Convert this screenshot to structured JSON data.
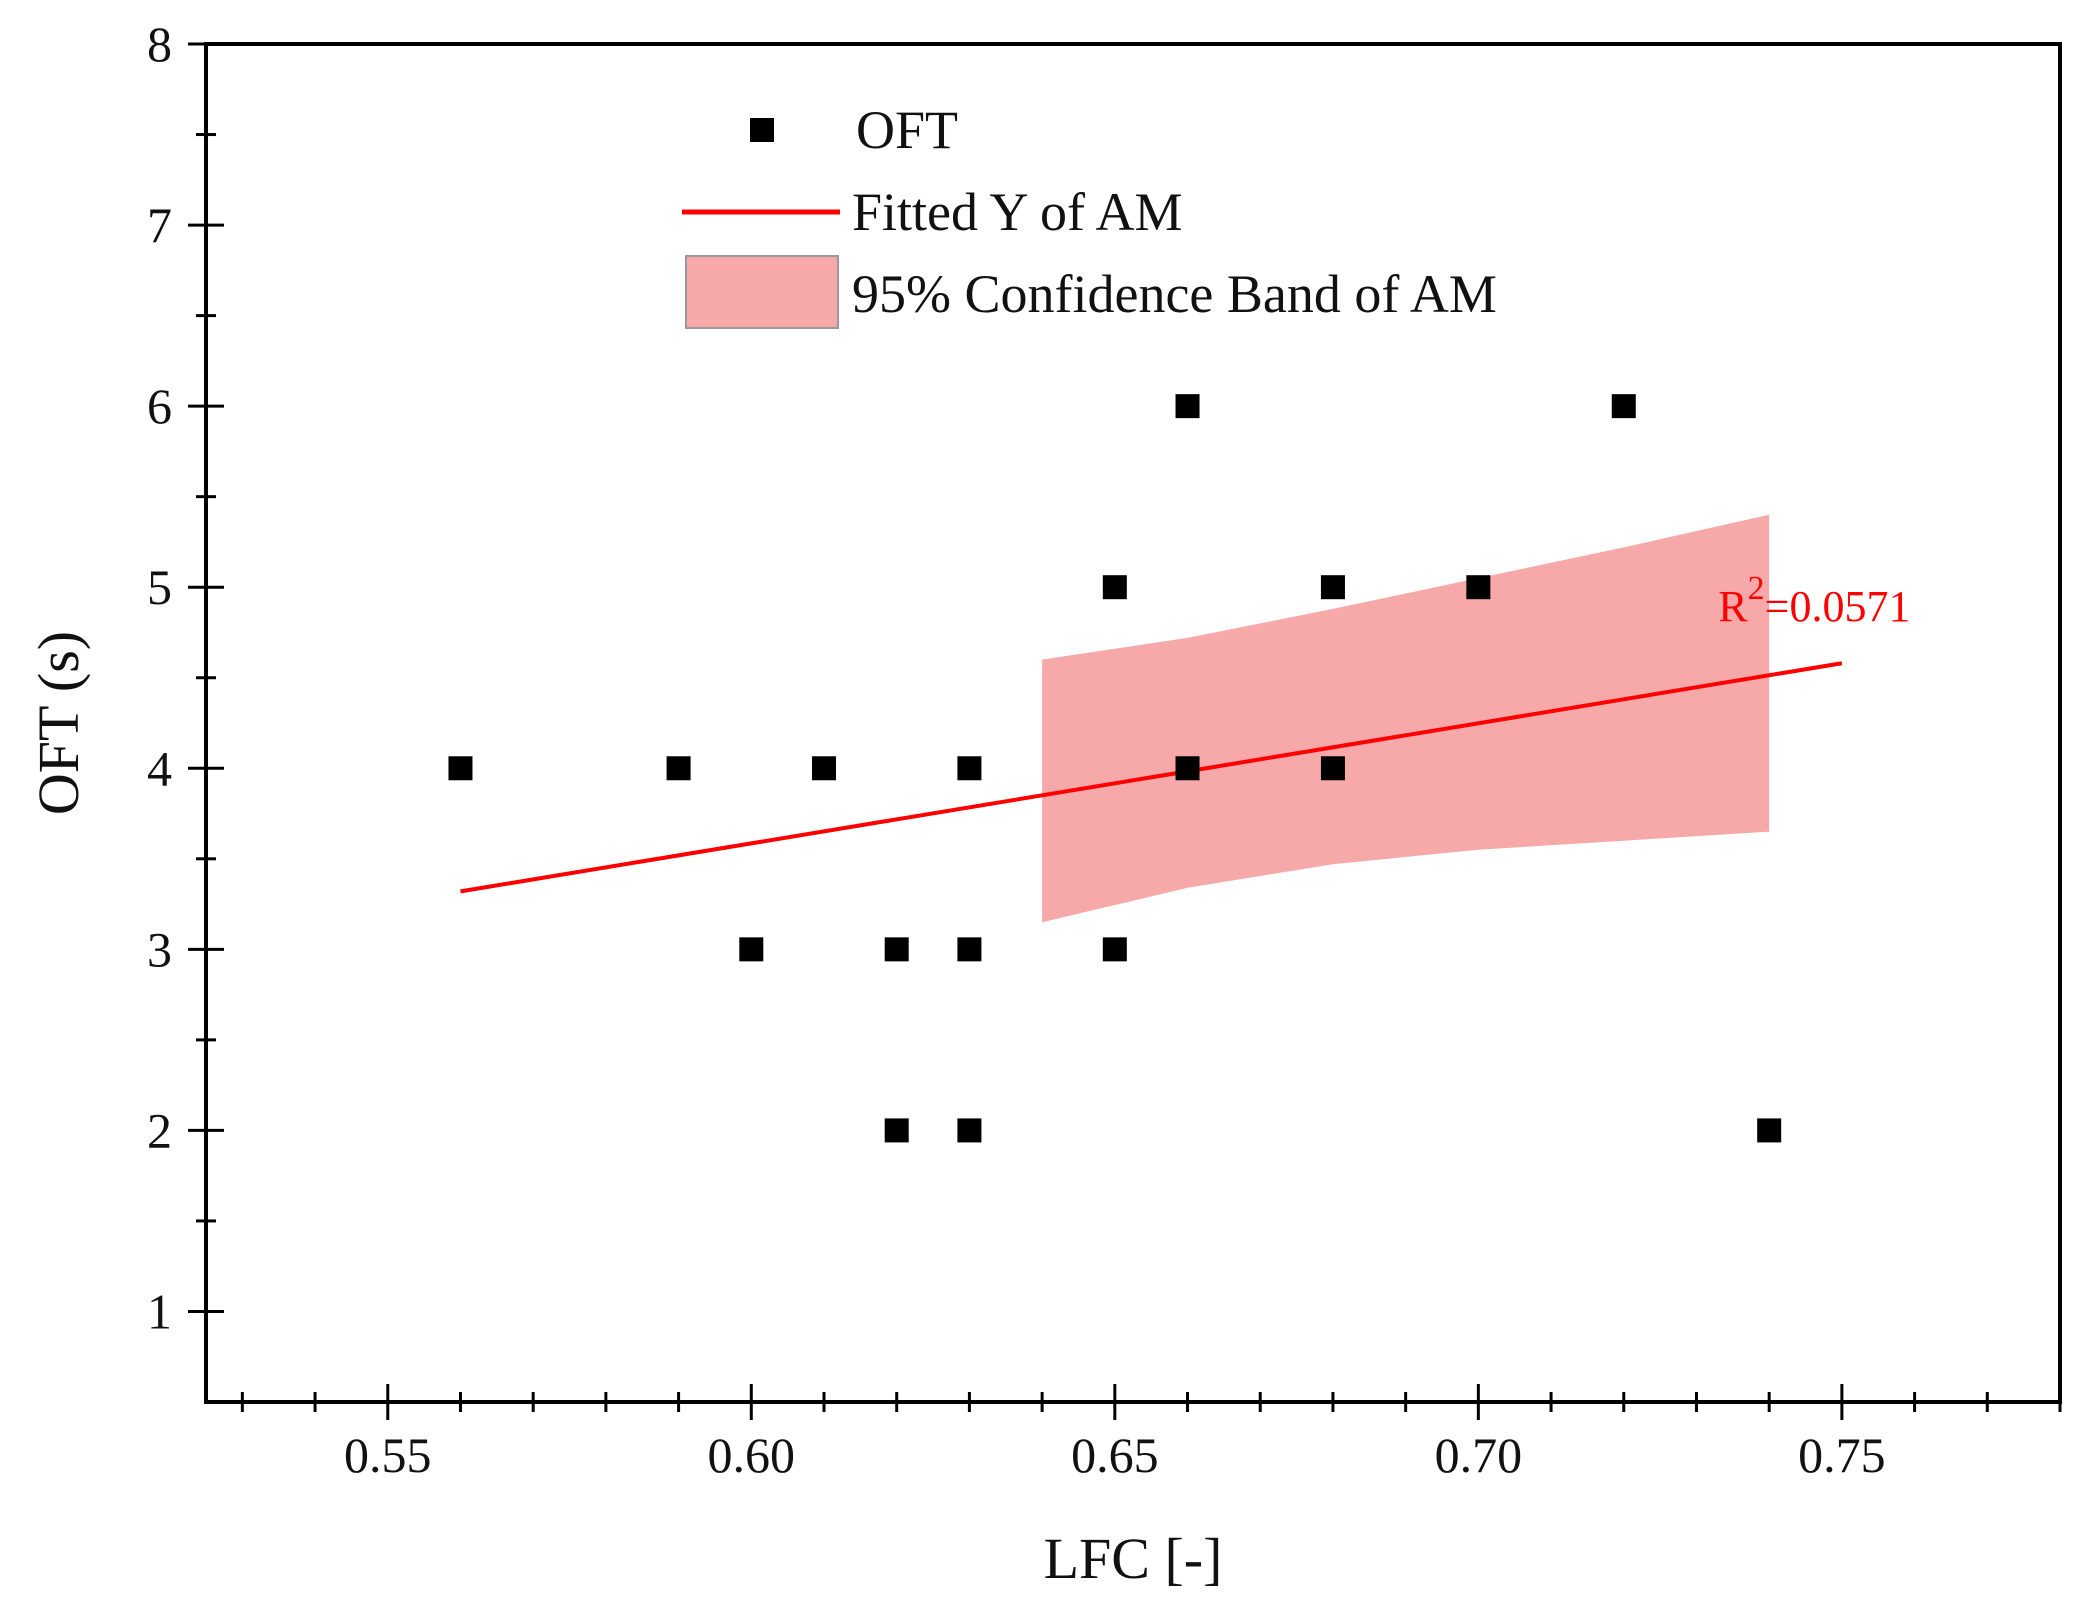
{
  "chart_data": {
    "type": "scatter",
    "title": "",
    "xlabel": "LFC [-]",
    "ylabel": "OFT (s)",
    "xlim": [
      0.525,
      0.78
    ],
    "ylim": [
      0.5,
      8
    ],
    "xticks": [
      0.55,
      0.6,
      0.65,
      0.7,
      0.75
    ],
    "xtick_labels": [
      "0.55",
      "0.60",
      "0.65",
      "0.70",
      "0.75"
    ],
    "yticks": [
      1,
      2,
      3,
      4,
      5,
      6,
      7,
      8
    ],
    "ytick_labels": [
      "1",
      "2",
      "3",
      "4",
      "5",
      "6",
      "7",
      "8"
    ],
    "grid": false,
    "legend_position": "top-center",
    "series": [
      {
        "name": "OFT",
        "kind": "scatter",
        "marker": "square",
        "color": "#000000",
        "x": [
          0.56,
          0.59,
          0.61,
          0.63,
          0.66,
          0.68,
          0.6,
          0.62,
          0.63,
          0.65,
          0.62,
          0.63,
          0.65,
          0.68,
          0.7,
          0.66,
          0.72,
          0.74
        ],
        "y": [
          4,
          4,
          4,
          4,
          4,
          4,
          3,
          3,
          3,
          3,
          2,
          2,
          5,
          5,
          5,
          6,
          6,
          2
        ]
      },
      {
        "name": "Fitted Y of AM",
        "kind": "line",
        "color": "#ff0000",
        "x": [
          0.56,
          0.75
        ],
        "y": [
          3.32,
          4.58
        ]
      },
      {
        "name": "95% Confidence Band of AM",
        "kind": "band",
        "color": "#f7a8a8",
        "x": [
          0.64,
          0.66,
          0.68,
          0.7,
          0.72,
          0.74
        ],
        "upper": [
          4.6,
          4.72,
          4.88,
          5.05,
          5.22,
          5.4
        ],
        "lower": [
          3.15,
          3.34,
          3.47,
          3.55,
          3.6,
          3.65
        ]
      }
    ],
    "annotations": [
      {
        "text_base": "R",
        "text_sup": "2",
        "text_rest": "=0.0571",
        "x": 0.733,
        "y": 5.0,
        "color": "#ff0000"
      }
    ]
  }
}
